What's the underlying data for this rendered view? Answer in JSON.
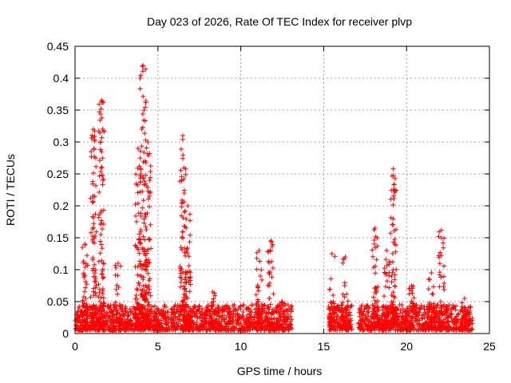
{
  "chart_data": {
    "type": "scatter",
    "title": "Day 023 of 2026, Rate Of TEC Index for receiver plvp",
    "xlabel": "GPS time / hours",
    "ylabel": "ROTI / TECUs",
    "xlim": [
      0,
      25
    ],
    "ylim": [
      0,
      0.45
    ],
    "xticks": [
      0,
      5,
      10,
      15,
      20,
      25
    ],
    "xtick_labels": [
      "0",
      "5",
      "10",
      "15",
      "20",
      "25"
    ],
    "yticks": [
      0,
      0.05,
      0.1,
      0.15,
      0.2,
      0.25,
      0.3,
      0.35,
      0.4,
      0.45
    ],
    "ytick_labels": [
      "0",
      "0.05",
      "0.1",
      "0.15",
      "0.2",
      "0.25",
      "0.3",
      "0.35",
      "0.4",
      "0.45"
    ],
    "grid": true,
    "marker": "+",
    "color": "#ff0000",
    "series": [
      {
        "name": "ROTI",
        "background_bands": [
          {
            "x_start": 0.0,
            "x_end": 13.1,
            "y_low": 0.005,
            "y_high": 0.045
          },
          {
            "x_start": 15.3,
            "x_end": 16.7,
            "y_low": 0.005,
            "y_high": 0.045
          },
          {
            "x_start": 17.1,
            "x_end": 24.0,
            "y_low": 0.005,
            "y_high": 0.045
          }
        ],
        "bursts": [
          {
            "x": 0.6,
            "y_max": 0.14
          },
          {
            "x": 1.1,
            "y_max": 0.32
          },
          {
            "x": 1.6,
            "y_max": 0.365
          },
          {
            "x": 2.6,
            "y_max": 0.11
          },
          {
            "x": 3.8,
            "y_max": 0.29
          },
          {
            "x": 4.1,
            "y_max": 0.42
          },
          {
            "x": 4.4,
            "y_max": 0.3
          },
          {
            "x": 6.5,
            "y_max": 0.31
          },
          {
            "x": 6.8,
            "y_max": 0.2
          },
          {
            "x": 8.3,
            "y_max": 0.065
          },
          {
            "x": 11.1,
            "y_max": 0.13
          },
          {
            "x": 11.8,
            "y_max": 0.145
          },
          {
            "x": 12.5,
            "y_max": 0.05
          },
          {
            "x": 15.5,
            "y_max": 0.125
          },
          {
            "x": 16.3,
            "y_max": 0.12
          },
          {
            "x": 18.1,
            "y_max": 0.165
          },
          {
            "x": 18.8,
            "y_max": 0.13
          },
          {
            "x": 19.2,
            "y_max": 0.258
          },
          {
            "x": 20.3,
            "y_max": 0.075
          },
          {
            "x": 21.5,
            "y_max": 0.095
          },
          {
            "x": 22.1,
            "y_max": 0.162
          },
          {
            "x": 23.5,
            "y_max": 0.055
          }
        ]
      }
    ]
  }
}
